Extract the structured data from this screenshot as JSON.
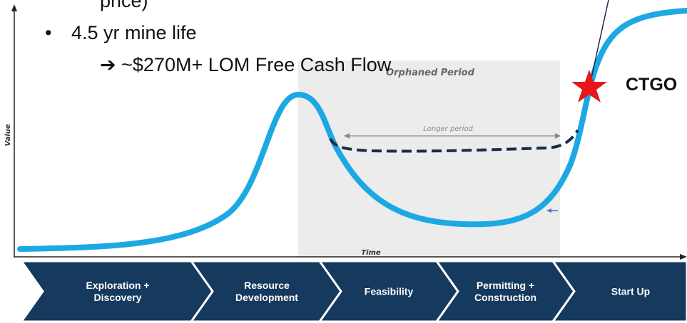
{
  "bullets": {
    "cut_line": "price)",
    "item": "4.5 yr mine life",
    "sub_item": "➔ ~$270M+ LOM Free Cash Flow"
  },
  "diagram": {
    "y_axis_label": "Value",
    "x_axis_label": "Time",
    "shaded_region_label": "Orphaned Period",
    "span_label": "Longer period",
    "marker_label": "CTGO"
  },
  "stages": [
    [
      "Exploration +",
      "Discovery"
    ],
    [
      "Resource",
      "Development"
    ],
    [
      "Feasibility"
    ],
    [
      "Permitting +",
      "Construction"
    ],
    [
      "Start Up"
    ]
  ]
}
